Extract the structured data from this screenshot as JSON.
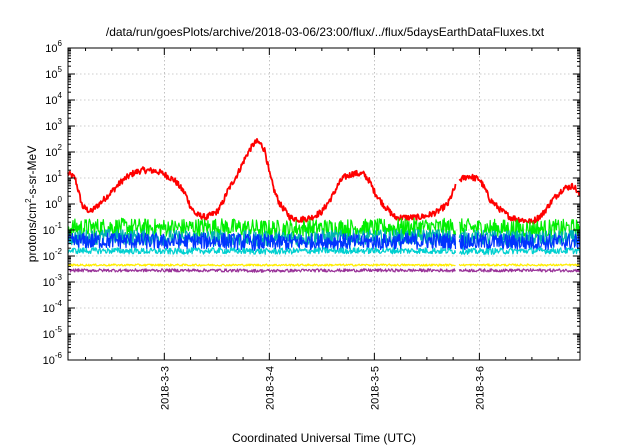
{
  "chart_data": {
    "type": "line",
    "title": "/data/run/goesPlots/archive/2018-03-06/23:00/flux/../flux/5daysEarthDataFluxes.txt",
    "xlabel": "Coordinated Universal Time (UTC)",
    "ylabel_parts": {
      "prefix": "protons/cm",
      "exponent": "2",
      "suffix": "-s-sr-MeV"
    },
    "y_scale": "log",
    "ylim": [
      1e-06,
      1000000.0
    ],
    "y_ticks": [
      {
        "exp": "-6"
      },
      {
        "exp": "-5"
      },
      {
        "exp": "-4"
      },
      {
        "exp": "-3"
      },
      {
        "exp": "-2"
      },
      {
        "exp": "-1"
      },
      {
        "exp": "0"
      },
      {
        "exp": "1"
      },
      {
        "exp": "2"
      },
      {
        "exp": "3"
      },
      {
        "exp": "4"
      },
      {
        "exp": "5"
      },
      {
        "exp": "6"
      }
    ],
    "y_tick_base": "10",
    "xlim": [
      "2018-03-02 02:00",
      "2018-03-06 23:00"
    ],
    "x_ticks": [
      {
        "label": "2018-3-3",
        "day": 1.0
      },
      {
        "label": "2018-3-4",
        "day": 2.0
      },
      {
        "label": "2018-3-5",
        "day": 3.0
      },
      {
        "label": "2018-3-6",
        "day": 4.0
      }
    ],
    "x_day_range": [
      0.083,
      4.958
    ],
    "grid": true,
    "data_gap_day": 3.79,
    "series": [
      {
        "color": "#ff0000",
        "x": [
          0.083,
          0.15,
          0.22,
          0.3,
          0.38,
          0.5,
          0.6,
          0.7,
          0.75,
          0.8,
          0.9,
          0.95,
          1.0,
          1.1,
          1.2,
          1.25,
          1.3,
          1.4,
          1.5,
          1.55,
          1.6,
          1.7,
          1.75,
          1.8,
          1.85,
          1.88,
          1.92,
          1.96,
          2.0,
          2.05,
          2.1,
          2.2,
          2.3,
          2.4,
          2.5,
          2.6,
          2.65,
          2.7,
          2.8,
          2.9,
          2.95,
          3.0,
          3.05,
          3.1,
          3.2,
          3.3,
          3.4,
          3.5,
          3.6,
          3.7,
          3.75,
          3.8,
          3.85,
          3.9,
          3.95,
          4.0,
          4.05,
          4.1,
          4.2,
          4.3,
          4.4,
          4.5,
          4.6,
          4.7,
          4.8,
          4.9,
          4.958
        ],
        "y": [
          15,
          10,
          0.8,
          0.5,
          1,
          3,
          8,
          15,
          18,
          20,
          19,
          17,
          14,
          8,
          2.5,
          0.8,
          0.4,
          0.3,
          0.5,
          1,
          3,
          15,
          40,
          100,
          200,
          250,
          200,
          110,
          15,
          3,
          1,
          0.3,
          0.25,
          0.3,
          0.5,
          2,
          5,
          10,
          15,
          14,
          8,
          3,
          1.5,
          0.8,
          0.3,
          0.3,
          0.3,
          0.35,
          0.5,
          1,
          3,
          8,
          10,
          12,
          10,
          9,
          4,
          1.5,
          0.6,
          0.3,
          0.25,
          0.2,
          0.4,
          1.5,
          4,
          5,
          2
        ]
      },
      {
        "color": "#00ee00",
        "x": [
          0.083,
          0.5,
          1.0,
          1.5,
          2.0,
          2.5,
          3.0,
          3.5,
          4.0,
          4.5,
          4.958
        ],
        "y": [
          0.12,
          0.13,
          0.12,
          0.13,
          0.11,
          0.12,
          0.12,
          0.13,
          0.12,
          0.11,
          0.12
        ]
      },
      {
        "color": "#00b3b3",
        "x": [
          0.083,
          0.5,
          1.0,
          1.5,
          2.0,
          2.5,
          3.0,
          3.5,
          4.0,
          4.5,
          4.958
        ],
        "y": [
          0.05,
          0.055,
          0.05,
          0.05,
          0.045,
          0.05,
          0.05,
          0.055,
          0.05,
          0.045,
          0.05
        ]
      },
      {
        "color": "#0033ff",
        "x": [
          0.083,
          0.5,
          1.0,
          1.5,
          2.0,
          2.5,
          3.0,
          3.5,
          4.0,
          4.5,
          4.958
        ],
        "y": [
          0.035,
          0.04,
          0.035,
          0.038,
          0.032,
          0.036,
          0.034,
          0.038,
          0.035,
          0.033,
          0.036
        ]
      },
      {
        "color": "#00d0d0",
        "x": [
          0.083,
          0.5,
          1.0,
          1.5,
          2.0,
          2.5,
          3.0,
          3.5,
          4.0,
          4.5,
          4.958
        ],
        "y": [
          0.016,
          0.016,
          0.015,
          0.016,
          0.015,
          0.016,
          0.016,
          0.016,
          0.015,
          0.016,
          0.016
        ]
      },
      {
        "color": "#ffee00",
        "x": [
          0.083,
          0.5,
          1.0,
          1.5,
          2.0,
          2.5,
          3.0,
          3.5,
          4.0,
          4.5,
          4.958
        ],
        "y": [
          0.0045,
          0.0045,
          0.0045,
          0.0045,
          0.0045,
          0.0045,
          0.0045,
          0.0045,
          0.0045,
          0.0045,
          0.0045
        ]
      },
      {
        "color": "#993399",
        "x": [
          0.083,
          0.5,
          1.0,
          1.5,
          2.0,
          2.5,
          3.0,
          3.5,
          4.0,
          4.5,
          4.958
        ],
        "y": [
          0.0028,
          0.0028,
          0.0028,
          0.0028,
          0.0027,
          0.0028,
          0.0028,
          0.0028,
          0.0028,
          0.0028,
          0.0028
        ]
      }
    ]
  }
}
